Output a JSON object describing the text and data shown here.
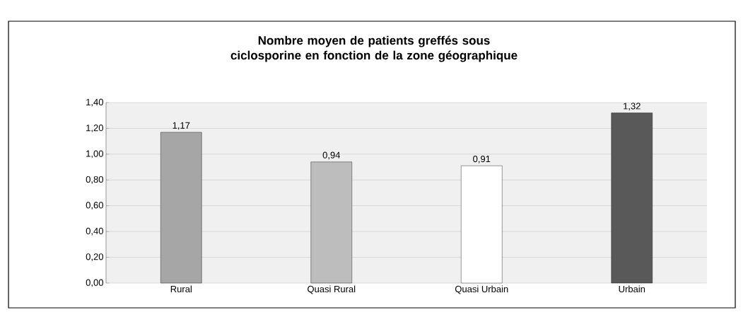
{
  "chart_data": {
    "type": "bar",
    "title": "Nombre moyen de patients greffés sous ciclosporine en fonction de la zone géographique",
    "categories": [
      "Rural",
      "Quasi Rural",
      "Quasi Urbain",
      "Urbain"
    ],
    "values": [
      1.17,
      0.94,
      0.91,
      1.32
    ],
    "value_labels": [
      "1,17",
      "0,94",
      "0,91",
      "1,32"
    ],
    "colors": [
      "#a6a6a6",
      "#bdbdbd",
      "#ffffff",
      "#595959"
    ],
    "ylim": [
      0,
      1.4
    ],
    "yticks": [
      {
        "value": 0,
        "label": "0,00"
      },
      {
        "value": 0.2,
        "label": "0,20"
      },
      {
        "value": 0.4,
        "label": "0,40"
      },
      {
        "value": 0.6,
        "label": "0,60"
      },
      {
        "value": 0.8,
        "label": "0,80"
      },
      {
        "value": 1.0,
        "label": "1,00"
      },
      {
        "value": 1.2,
        "label": "1,20"
      },
      {
        "value": 1.4,
        "label": "1,40"
      }
    ],
    "grid": "y"
  }
}
